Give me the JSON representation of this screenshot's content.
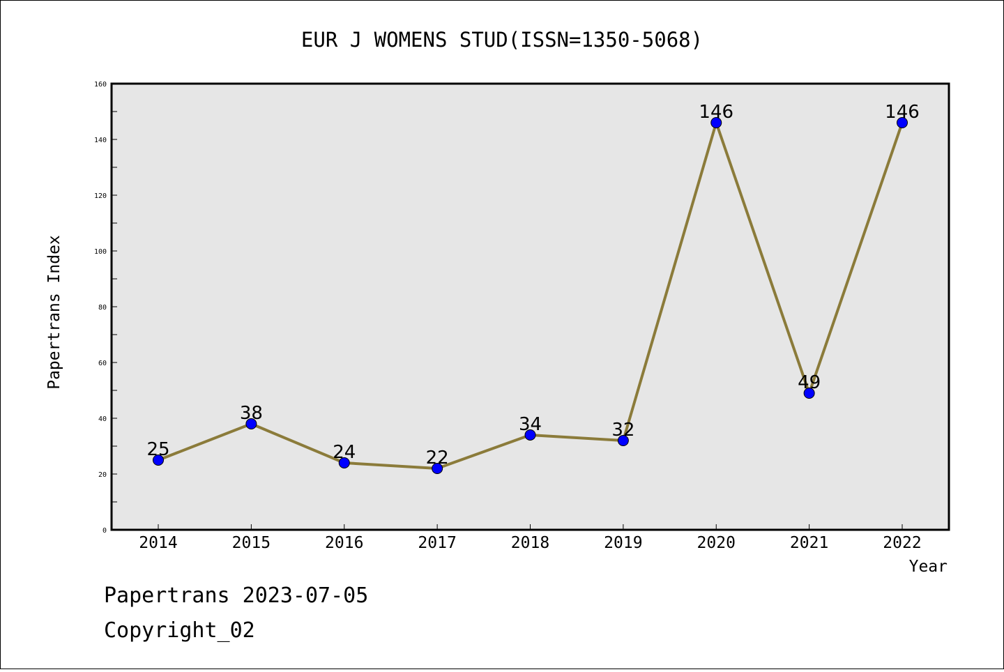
{
  "footer": {
    "line1": "Papertrans 2023-07-05",
    "line2": "Copyright_02"
  },
  "chart_data": {
    "type": "line",
    "title": "EUR J WOMENS STUD(ISSN=1350-5068)",
    "xlabel": "Year",
    "ylabel": "Papertrans Index",
    "x": [
      "2014",
      "2015",
      "2016",
      "2017",
      "2018",
      "2019",
      "2020",
      "2021",
      "2022"
    ],
    "series": [
      {
        "values": [
          25,
          38,
          24,
          22,
          34,
          32,
          146,
          49,
          146
        ]
      }
    ],
    "ylim": [
      0,
      160
    ],
    "yticks": [
      0,
      20,
      40,
      60,
      80,
      100,
      120,
      140,
      160
    ],
    "grid": false,
    "colors": {
      "line": "#8B7B3A",
      "marker": "#0000FF",
      "plot_bg": "#E6E6E6"
    }
  }
}
